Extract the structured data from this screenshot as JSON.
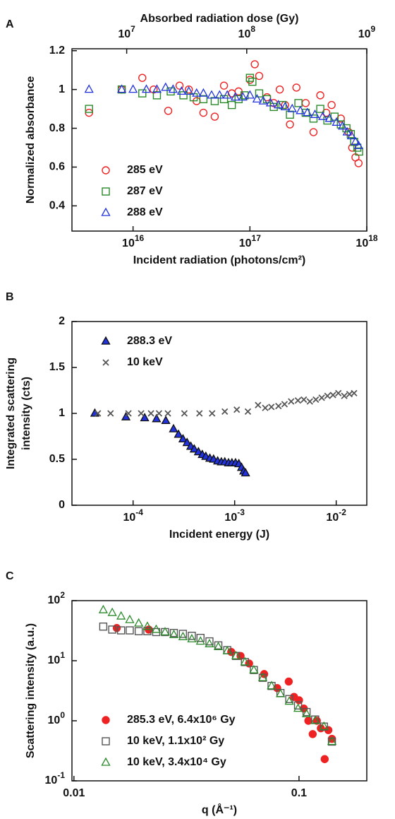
{
  "chart_data": [
    {
      "type": "scatter",
      "label": "A",
      "xlabel": "Incident radiation (photons/cm²)",
      "ylabel": "Normalized absorbance",
      "x2label": "Absorbed radiation dose (Gy)",
      "xlog": true,
      "ylog": false,
      "xlim": [
        3000000000000000.0,
        1e+18
      ],
      "ylim": [
        0.27,
        1.21
      ],
      "xticks": [
        {
          "value": 1e+16,
          "label": "10^16"
        },
        {
          "value": 1e+17,
          "label": "10^17"
        },
        {
          "value": 1e+18,
          "label": "10^18"
        }
      ],
      "yticks": [
        0.4,
        0.6,
        0.8,
        1,
        1.2
      ],
      "x2lim": [
        3500000.0,
        1000000000.0
      ],
      "x2ticks": [
        {
          "value": 10000000.0,
          "label": "10^7"
        },
        {
          "value": 100000000.0,
          "label": "10^8"
        },
        {
          "value": 1000000000.0,
          "label": "10^9"
        }
      ],
      "legend": "lower left",
      "series": [
        {
          "name": "285 eV",
          "color": "#ee2222",
          "marker": "circle-open",
          "x": [
            4200000000000000.0,
            8000000000000000.0,
            1.2e+16,
            1.5e+16,
            2e+16,
            2.5e+16,
            3e+16,
            3.5e+16,
            4e+16,
            5e+16,
            6e+16,
            7e+16,
            8e+16,
            1e+17,
            1.1e+17,
            1.2e+17,
            1.4e+17,
            1.6e+17,
            1.8e+17,
            2e+17,
            2.2e+17,
            2.5e+17,
            3e+17,
            3.5e+17,
            4e+17,
            4.5e+17,
            5e+17,
            6e+17,
            7e+17,
            7.5e+17,
            8e+17,
            8.5e+17
          ],
          "values": [
            0.88,
            1,
            1.06,
            1,
            0.89,
            1.02,
            1,
            0.94,
            0.88,
            0.86,
            1.02,
            0.98,
            0.99,
            1.05,
            1.13,
            1.07,
            0.96,
            0.93,
            1,
            0.92,
            0.82,
            1.01,
            0.93,
            0.78,
            0.97,
            0.88,
            0.92,
            0.85,
            0.78,
            0.7,
            0.65,
            0.62
          ]
        },
        {
          "name": "287 eV",
          "color": "#2a8a2a",
          "marker": "square-open",
          "x": [
            4200000000000000.0,
            8000000000000000.0,
            1.2e+16,
            1.6e+16,
            2.1e+16,
            2.7e+16,
            3.3e+16,
            4e+16,
            5e+16,
            6e+16,
            7e+16,
            8e+16,
            9e+16,
            1e+17,
            1.05e+17,
            1.2e+17,
            1.4e+17,
            1.6e+17,
            1.9e+17,
            2.2e+17,
            2.6e+17,
            3e+17,
            3.5e+17,
            4e+17,
            4.6e+17,
            5.3e+17,
            6e+17,
            6.7e+17,
            7.3e+17,
            7.8e+17,
            8.3e+17,
            8.6e+17
          ],
          "values": [
            0.9,
            1,
            0.98,
            0.97,
            0.99,
            0.97,
            0.96,
            0.95,
            0.94,
            0.95,
            0.92,
            0.95,
            0.97,
            1.06,
            1.04,
            0.98,
            0.95,
            0.91,
            0.92,
            0.87,
            0.93,
            0.88,
            0.85,
            0.9,
            0.84,
            0.86,
            0.82,
            0.8,
            0.77,
            0.73,
            0.7,
            0.68
          ]
        },
        {
          "name": "288 eV",
          "color": "#2233dd",
          "marker": "triangle-open",
          "x": [
            4200000000000000.0,
            8000000000000000.0,
            1e+16,
            1.3e+16,
            1.6e+16,
            1.9e+16,
            2.2e+16,
            2.6e+16,
            3e+16,
            3.5e+16,
            4e+16,
            4.7e+16,
            5.5e+16,
            6.4e+16,
            7.5e+16,
            8.7e+16,
            1e+17,
            1.15e+17,
            1.3e+17,
            1.5e+17,
            1.75e+17,
            2e+17,
            2.3e+17,
            2.7e+17,
            3.1e+17,
            3.6e+17,
            4.2e+17,
            4.8e+17,
            5.5e+17,
            6.2e+17,
            6.8e+17,
            7.4e+17,
            8e+17,
            8.5e+17
          ],
          "values": [
            1,
            1,
            1,
            1,
            1,
            1.01,
            1,
            0.99,
            0.99,
            0.98,
            0.98,
            0.97,
            0.97,
            0.97,
            0.96,
            0.96,
            0.97,
            0.95,
            0.94,
            0.93,
            0.92,
            0.91,
            0.9,
            0.89,
            0.88,
            0.87,
            0.86,
            0.85,
            0.83,
            0.81,
            0.78,
            0.76,
            0.73,
            0.71
          ]
        }
      ]
    },
    {
      "type": "scatter",
      "label": "B",
      "xlabel": "Incident energy (J)",
      "ylabel": [
        "Integrated scattering",
        "intensity (cts)"
      ],
      "xlog": true,
      "ylog": false,
      "xlim": [
        2.5e-05,
        0.02
      ],
      "ylim": [
        0,
        2
      ],
      "xticks": [
        {
          "value": 0.0001,
          "label": "10^-4"
        },
        {
          "value": 0.001,
          "label": "10^-3"
        },
        {
          "value": 0.01,
          "label": "10^-2"
        }
      ],
      "yticks": [
        0,
        0.5,
        1,
        1.5,
        2
      ],
      "legend": "upper left",
      "series": [
        {
          "name": "288.3 eV",
          "color": "#2233dd",
          "marker": "triangle-filled",
          "x": [
            4.2e-05,
            8.5e-05,
            0.00013,
            0.00017,
            0.00021,
            0.00025,
            0.00028,
            0.00031,
            0.00034,
            0.00037,
            0.0004,
            0.00044,
            0.00048,
            0.00052,
            0.00057,
            0.00062,
            0.00068,
            0.00074,
            0.0008,
            0.00087,
            0.00094,
            0.00102,
            0.0011,
            0.00117,
            0.00123,
            0.00128
          ],
          "values": [
            1,
            0.96,
            0.95,
            0.94,
            0.92,
            0.83,
            0.77,
            0.72,
            0.68,
            0.64,
            0.61,
            0.58,
            0.55,
            0.53,
            0.51,
            0.5,
            0.48,
            0.47,
            0.47,
            0.46,
            0.46,
            0.46,
            0.45,
            0.41,
            0.37,
            0.35
          ]
        },
        {
          "name": "10 keV",
          "color": "#555555",
          "marker": "x",
          "x": [
            4.5e-05,
            6e-05,
            9e-05,
            0.00012,
            0.00015,
            0.00018,
            0.00022,
            0.00032,
            0.00045,
            0.0006,
            0.0008,
            0.00105,
            0.00135,
            0.0017,
            0.002,
            0.0023,
            0.0027,
            0.0031,
            0.0036,
            0.0042,
            0.0048,
            0.0055,
            0.0063,
            0.0072,
            0.0082,
            0.0093,
            0.0105,
            0.012,
            0.0135,
            0.015
          ],
          "values": [
            1,
            1,
            1,
            1,
            1,
            1,
            1,
            1,
            1,
            1,
            1.02,
            1.04,
            1.02,
            1.09,
            1.06,
            1.07,
            1.08,
            1.1,
            1.13,
            1.14,
            1.15,
            1.13,
            1.15,
            1.17,
            1.19,
            1.2,
            1.22,
            1.19,
            1.21,
            1.22
          ]
        }
      ]
    },
    {
      "type": "scatter",
      "label": "C",
      "xlabel": "q (Å⁻¹)",
      "ylabel": "Scattering intensity (a.u.)",
      "xlog": true,
      "ylog": true,
      "xlim": [
        0.0098,
        0.2
      ],
      "ylim": [
        0.1,
        100
      ],
      "xticks": [
        0.01,
        0.1
      ],
      "yticks": [
        {
          "value": 0.1,
          "label": "10^-1"
        },
        {
          "value": 1,
          "label": "10^0"
        },
        {
          "value": 10,
          "label": "10^1"
        },
        {
          "value": 100,
          "label": "10^2"
        }
      ],
      "legend": "lower left",
      "series": [
        {
          "name": "285.3 eV, 6.4x10⁶ Gy",
          "color": "#ee2222",
          "marker": "circle-filled",
          "x": [
            0.0155,
            0.0215,
            0.05,
            0.055,
            0.06,
            0.07,
            0.08,
            0.09,
            0.095,
            0.1,
            0.105,
            0.11,
            0.115,
            0.12,
            0.125,
            0.13,
            0.135,
            0.14
          ],
          "values": [
            35,
            33,
            14,
            12,
            9,
            6,
            3.5,
            4.5,
            2.5,
            2.2,
            1.6,
            1,
            0.6,
            1,
            0.75,
            0.23,
            0.7,
            0.5
          ]
        },
        {
          "name": "10 keV, 1.1x10² Gy",
          "color": "#555555",
          "marker": "square-open",
          "x": [
            0.0135,
            0.0148,
            0.0162,
            0.0177,
            0.0194,
            0.0212,
            0.0232,
            0.0254,
            0.0278,
            0.0305,
            0.0334,
            0.0365,
            0.04,
            0.0438,
            0.048,
            0.0525,
            0.0575,
            0.063,
            0.069,
            0.0755,
            0.0827,
            0.0905,
            0.099,
            0.108,
            0.118,
            0.129,
            0.14
          ],
          "values": [
            37,
            33,
            32,
            32,
            31,
            31,
            30,
            30,
            29,
            28,
            26,
            24,
            21,
            18,
            15,
            12,
            9.5,
            7,
            5.2,
            3.8,
            2.9,
            2.3,
            1.8,
            1.4,
            1.05,
            0.8,
            0.45
          ]
        },
        {
          "name": "10 keV, 3.4x10⁴ Gy",
          "color": "#2a8a2a",
          "marker": "triangle-open",
          "x": [
            0.0135,
            0.0148,
            0.0162,
            0.0177,
            0.0194,
            0.0212,
            0.0232,
            0.0254,
            0.0278,
            0.0305,
            0.0334,
            0.0365,
            0.04,
            0.0438,
            0.048,
            0.0525,
            0.0575,
            0.063,
            0.069,
            0.0755,
            0.0827,
            0.0905,
            0.099,
            0.108,
            0.118,
            0.129,
            0.14
          ],
          "values": [
            70,
            63,
            55,
            48,
            42,
            37,
            33,
            30,
            27,
            25,
            23,
            21,
            19,
            17,
            14.5,
            12,
            9.5,
            7,
            5.2,
            3.8,
            2.8,
            2.1,
            1.6,
            1.3,
            1,
            0.8,
            0.45
          ]
        }
      ]
    }
  ]
}
